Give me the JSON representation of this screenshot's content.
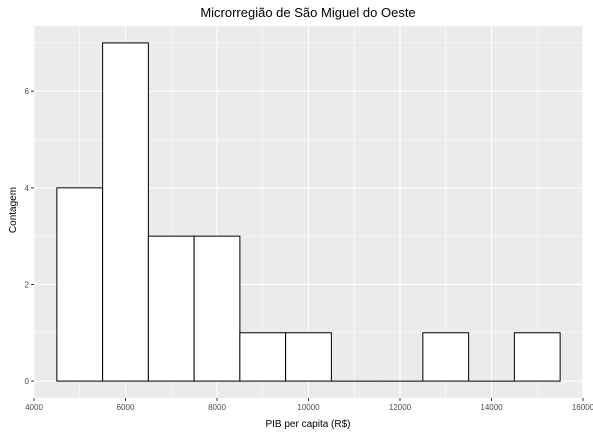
{
  "chart_data": {
    "type": "bar",
    "title": "Microrregião de  São Miguel do Oeste",
    "xlabel": "PIB per capita (R$)",
    "ylabel": "Contagem",
    "xlim": [
      4000,
      16000
    ],
    "ylim": [
      0,
      7
    ],
    "x_ticks": [
      "4000",
      "6000",
      "8000",
      "10000",
      "12000",
      "14000",
      "16000"
    ],
    "y_ticks": [
      "0",
      "2",
      "4",
      "6"
    ],
    "bins": [
      {
        "start": 4500,
        "end": 5500,
        "count": 4
      },
      {
        "start": 5500,
        "end": 6500,
        "count": 7
      },
      {
        "start": 6500,
        "end": 7500,
        "count": 3
      },
      {
        "start": 7500,
        "end": 8500,
        "count": 3
      },
      {
        "start": 8500,
        "end": 9500,
        "count": 1
      },
      {
        "start": 9500,
        "end": 10500,
        "count": 1
      },
      {
        "start": 10500,
        "end": 11500,
        "count": 0
      },
      {
        "start": 11500,
        "end": 12500,
        "count": 0
      },
      {
        "start": 12500,
        "end": 13500,
        "count": 1
      },
      {
        "start": 13500,
        "end": 14500,
        "count": 0
      },
      {
        "start": 14500,
        "end": 15500,
        "count": 1
      }
    ],
    "grid": true,
    "legend": "none",
    "colors": {
      "panel_background": "#ebebeb",
      "grid_line": "#ffffff",
      "bar_fill": "#ffffff",
      "bar_outline": "#000000",
      "tick_text": "#4d4d4d"
    }
  }
}
